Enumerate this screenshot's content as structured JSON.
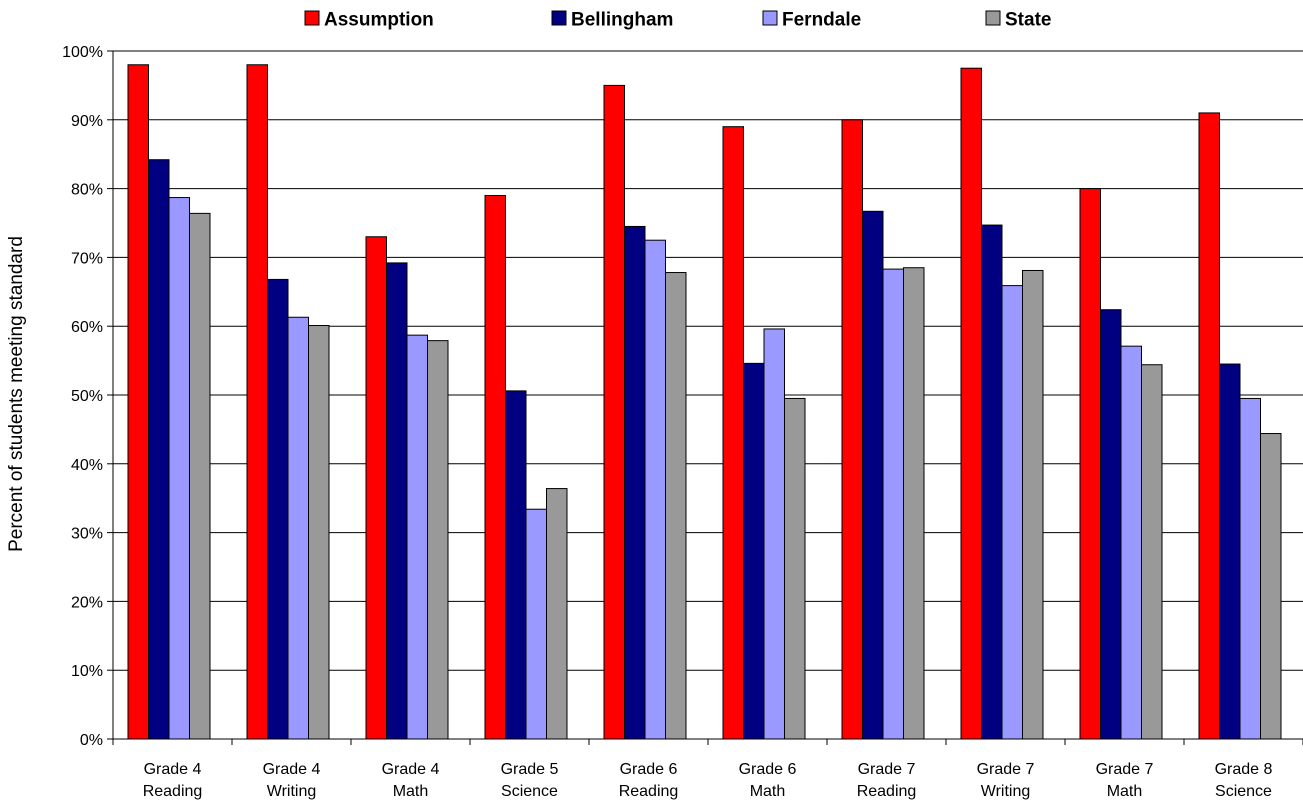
{
  "chart_data": {
    "type": "bar",
    "categories": [
      [
        "Grade 4",
        "Reading"
      ],
      [
        "Grade 4",
        "Writing"
      ],
      [
        "Grade 4",
        "Math"
      ],
      [
        "Grade 5",
        "Science"
      ],
      [
        "Grade 6",
        "Reading"
      ],
      [
        "Grade 6",
        "Math"
      ],
      [
        "Grade 7",
        "Reading"
      ],
      [
        "Grade 7",
        "Writing"
      ],
      [
        "Grade 7",
        "Math"
      ],
      [
        "Grade 8",
        "Science"
      ]
    ],
    "series": [
      {
        "name": "Assumption",
        "color": "#ff0000",
        "values": [
          98,
          98,
          73,
          79,
          95,
          89,
          90,
          97.5,
          80,
          91
        ]
      },
      {
        "name": "Bellingham",
        "color": "#000080",
        "values": [
          84.2,
          66.8,
          69.2,
          50.6,
          74.5,
          54.6,
          76.7,
          74.7,
          62.4,
          54.5
        ]
      },
      {
        "name": "Ferndale",
        "color": "#9999ff",
        "values": [
          78.7,
          61.3,
          58.7,
          33.4,
          72.5,
          59.6,
          68.3,
          65.9,
          57.1,
          49.5
        ]
      },
      {
        "name": "State",
        "color": "#999999",
        "values": [
          76.4,
          60.1,
          57.9,
          36.4,
          67.8,
          49.5,
          68.5,
          68.1,
          54.4,
          44.4
        ]
      }
    ],
    "title": "",
    "xlabel": "",
    "ylabel": "Percent of students meeting standard",
    "ylim": [
      0,
      100
    ],
    "yticks": [
      "0%",
      "10%",
      "20%",
      "30%",
      "40%",
      "50%",
      "60%",
      "70%",
      "80%",
      "90%",
      "100%"
    ],
    "grid": true,
    "legend_position": "top"
  }
}
